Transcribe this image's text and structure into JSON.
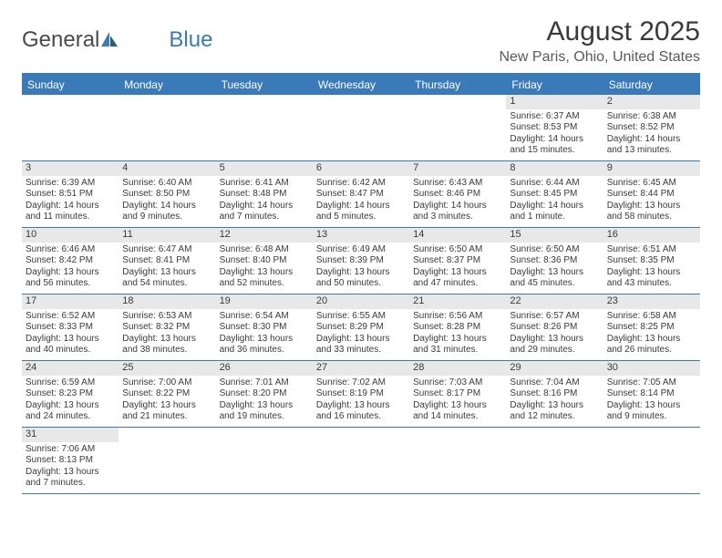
{
  "logo": {
    "text1": "General",
    "text2": "Blue"
  },
  "title": "August 2025",
  "location": "New Paris, Ohio, United States",
  "colors": {
    "header_bg": "#3a7ab8",
    "header_text": "#ffffff",
    "border": "#3a7ab8",
    "daynum_bg": "#e8e8e8",
    "text": "#3a3a3a",
    "logo_blue": "#3a7ab8"
  },
  "fonts": {
    "title_size": 30,
    "location_size": 16,
    "weekday_size": 12,
    "daynum_size": 11,
    "body_size": 10
  },
  "weekdays": [
    "Sunday",
    "Monday",
    "Tuesday",
    "Wednesday",
    "Thursday",
    "Friday",
    "Saturday"
  ],
  "weeks": [
    [
      null,
      null,
      null,
      null,
      null,
      {
        "num": "1",
        "sunrise": "Sunrise: 6:37 AM",
        "sunset": "Sunset: 8:53 PM",
        "daylight1": "Daylight: 14 hours",
        "daylight2": "and 15 minutes."
      },
      {
        "num": "2",
        "sunrise": "Sunrise: 6:38 AM",
        "sunset": "Sunset: 8:52 PM",
        "daylight1": "Daylight: 14 hours",
        "daylight2": "and 13 minutes."
      }
    ],
    [
      {
        "num": "3",
        "sunrise": "Sunrise: 6:39 AM",
        "sunset": "Sunset: 8:51 PM",
        "daylight1": "Daylight: 14 hours",
        "daylight2": "and 11 minutes."
      },
      {
        "num": "4",
        "sunrise": "Sunrise: 6:40 AM",
        "sunset": "Sunset: 8:50 PM",
        "daylight1": "Daylight: 14 hours",
        "daylight2": "and 9 minutes."
      },
      {
        "num": "5",
        "sunrise": "Sunrise: 6:41 AM",
        "sunset": "Sunset: 8:48 PM",
        "daylight1": "Daylight: 14 hours",
        "daylight2": "and 7 minutes."
      },
      {
        "num": "6",
        "sunrise": "Sunrise: 6:42 AM",
        "sunset": "Sunset: 8:47 PM",
        "daylight1": "Daylight: 14 hours",
        "daylight2": "and 5 minutes."
      },
      {
        "num": "7",
        "sunrise": "Sunrise: 6:43 AM",
        "sunset": "Sunset: 8:46 PM",
        "daylight1": "Daylight: 14 hours",
        "daylight2": "and 3 minutes."
      },
      {
        "num": "8",
        "sunrise": "Sunrise: 6:44 AM",
        "sunset": "Sunset: 8:45 PM",
        "daylight1": "Daylight: 14 hours",
        "daylight2": "and 1 minute."
      },
      {
        "num": "9",
        "sunrise": "Sunrise: 6:45 AM",
        "sunset": "Sunset: 8:44 PM",
        "daylight1": "Daylight: 13 hours",
        "daylight2": "and 58 minutes."
      }
    ],
    [
      {
        "num": "10",
        "sunrise": "Sunrise: 6:46 AM",
        "sunset": "Sunset: 8:42 PM",
        "daylight1": "Daylight: 13 hours",
        "daylight2": "and 56 minutes."
      },
      {
        "num": "11",
        "sunrise": "Sunrise: 6:47 AM",
        "sunset": "Sunset: 8:41 PM",
        "daylight1": "Daylight: 13 hours",
        "daylight2": "and 54 minutes."
      },
      {
        "num": "12",
        "sunrise": "Sunrise: 6:48 AM",
        "sunset": "Sunset: 8:40 PM",
        "daylight1": "Daylight: 13 hours",
        "daylight2": "and 52 minutes."
      },
      {
        "num": "13",
        "sunrise": "Sunrise: 6:49 AM",
        "sunset": "Sunset: 8:39 PM",
        "daylight1": "Daylight: 13 hours",
        "daylight2": "and 50 minutes."
      },
      {
        "num": "14",
        "sunrise": "Sunrise: 6:50 AM",
        "sunset": "Sunset: 8:37 PM",
        "daylight1": "Daylight: 13 hours",
        "daylight2": "and 47 minutes."
      },
      {
        "num": "15",
        "sunrise": "Sunrise: 6:50 AM",
        "sunset": "Sunset: 8:36 PM",
        "daylight1": "Daylight: 13 hours",
        "daylight2": "and 45 minutes."
      },
      {
        "num": "16",
        "sunrise": "Sunrise: 6:51 AM",
        "sunset": "Sunset: 8:35 PM",
        "daylight1": "Daylight: 13 hours",
        "daylight2": "and 43 minutes."
      }
    ],
    [
      {
        "num": "17",
        "sunrise": "Sunrise: 6:52 AM",
        "sunset": "Sunset: 8:33 PM",
        "daylight1": "Daylight: 13 hours",
        "daylight2": "and 40 minutes."
      },
      {
        "num": "18",
        "sunrise": "Sunrise: 6:53 AM",
        "sunset": "Sunset: 8:32 PM",
        "daylight1": "Daylight: 13 hours",
        "daylight2": "and 38 minutes."
      },
      {
        "num": "19",
        "sunrise": "Sunrise: 6:54 AM",
        "sunset": "Sunset: 8:30 PM",
        "daylight1": "Daylight: 13 hours",
        "daylight2": "and 36 minutes."
      },
      {
        "num": "20",
        "sunrise": "Sunrise: 6:55 AM",
        "sunset": "Sunset: 8:29 PM",
        "daylight1": "Daylight: 13 hours",
        "daylight2": "and 33 minutes."
      },
      {
        "num": "21",
        "sunrise": "Sunrise: 6:56 AM",
        "sunset": "Sunset: 8:28 PM",
        "daylight1": "Daylight: 13 hours",
        "daylight2": "and 31 minutes."
      },
      {
        "num": "22",
        "sunrise": "Sunrise: 6:57 AM",
        "sunset": "Sunset: 8:26 PM",
        "daylight1": "Daylight: 13 hours",
        "daylight2": "and 29 minutes."
      },
      {
        "num": "23",
        "sunrise": "Sunrise: 6:58 AM",
        "sunset": "Sunset: 8:25 PM",
        "daylight1": "Daylight: 13 hours",
        "daylight2": "and 26 minutes."
      }
    ],
    [
      {
        "num": "24",
        "sunrise": "Sunrise: 6:59 AM",
        "sunset": "Sunset: 8:23 PM",
        "daylight1": "Daylight: 13 hours",
        "daylight2": "and 24 minutes."
      },
      {
        "num": "25",
        "sunrise": "Sunrise: 7:00 AM",
        "sunset": "Sunset: 8:22 PM",
        "daylight1": "Daylight: 13 hours",
        "daylight2": "and 21 minutes."
      },
      {
        "num": "26",
        "sunrise": "Sunrise: 7:01 AM",
        "sunset": "Sunset: 8:20 PM",
        "daylight1": "Daylight: 13 hours",
        "daylight2": "and 19 minutes."
      },
      {
        "num": "27",
        "sunrise": "Sunrise: 7:02 AM",
        "sunset": "Sunset: 8:19 PM",
        "daylight1": "Daylight: 13 hours",
        "daylight2": "and 16 minutes."
      },
      {
        "num": "28",
        "sunrise": "Sunrise: 7:03 AM",
        "sunset": "Sunset: 8:17 PM",
        "daylight1": "Daylight: 13 hours",
        "daylight2": "and 14 minutes."
      },
      {
        "num": "29",
        "sunrise": "Sunrise: 7:04 AM",
        "sunset": "Sunset: 8:16 PM",
        "daylight1": "Daylight: 13 hours",
        "daylight2": "and 12 minutes."
      },
      {
        "num": "30",
        "sunrise": "Sunrise: 7:05 AM",
        "sunset": "Sunset: 8:14 PM",
        "daylight1": "Daylight: 13 hours",
        "daylight2": "and 9 minutes."
      }
    ],
    [
      {
        "num": "31",
        "sunrise": "Sunrise: 7:06 AM",
        "sunset": "Sunset: 8:13 PM",
        "daylight1": "Daylight: 13 hours",
        "daylight2": "and 7 minutes."
      },
      null,
      null,
      null,
      null,
      null,
      null
    ]
  ]
}
